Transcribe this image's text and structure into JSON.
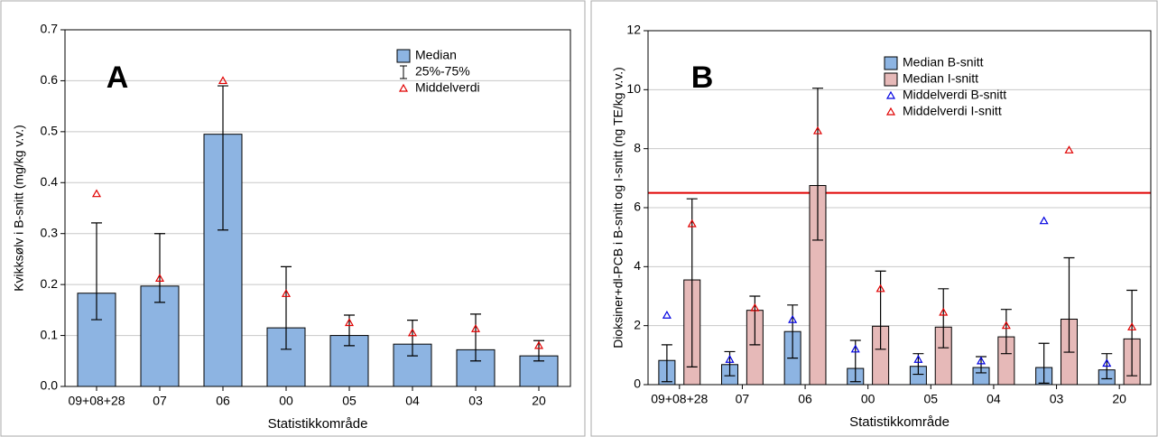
{
  "chart_data": [
    {
      "type": "bar",
      "annotation": "A",
      "xlabel": "Statistikkområde",
      "ylabel": "Kvikksølv i B-snitt (mg/kg v.v.)",
      "categories": [
        "09+08+28",
        "07",
        "06",
        "00",
        "05",
        "04",
        "03",
        "20"
      ],
      "ylim": [
        0,
        0.7
      ],
      "yticks": [
        {
          "value": 0,
          "label": "0.0"
        },
        0.1,
        0.2,
        0.3,
        0.4,
        0.5,
        0.6,
        0.7
      ],
      "grid": true,
      "series": [
        {
          "name": "Median",
          "color": "#8db4e2",
          "range_label": "25%-75%",
          "values": [
            0.183,
            0.197,
            0.495,
            0.115,
            0.1,
            0.083,
            0.072,
            0.06
          ],
          "q25": [
            0.131,
            0.165,
            0.307,
            0.073,
            0.08,
            0.06,
            0.05,
            0.05
          ],
          "q75": [
            0.321,
            0.3,
            0.59,
            0.235,
            0.14,
            0.13,
            0.142,
            0.09
          ]
        },
        {
          "name": "Middelverdi",
          "marker": "triangle",
          "color": "#e00000",
          "values": [
            0.378,
            0.212,
            0.6,
            0.182,
            0.125,
            0.105,
            0.113,
            0.08
          ]
        }
      ]
    },
    {
      "type": "bar",
      "annotation": "B",
      "xlabel": "Statistikkområde",
      "ylabel": "Dioksiner+dl-PCB i B-snitt og I-snitt (ng TE/kg v.v.)",
      "categories": [
        "09+08+28",
        "07",
        "06",
        "00",
        "05",
        "04",
        "03",
        "20"
      ],
      "ylim": [
        0,
        12
      ],
      "yticks": [
        0,
        2,
        4,
        6,
        8,
        10,
        12
      ],
      "grid": true,
      "reference_line": 6.5,
      "reference_color": "#e00000",
      "series": [
        {
          "name": "Median B-snitt",
          "color": "#8db4e2",
          "values": [
            0.82,
            0.68,
            1.8,
            0.55,
            0.62,
            0.58,
            0.58,
            0.5
          ],
          "q25": [
            0.1,
            0.3,
            0.9,
            0.1,
            0.35,
            0.4,
            0.05,
            0.2
          ],
          "q75": [
            1.35,
            1.12,
            2.7,
            1.5,
            1.05,
            0.95,
            1.4,
            1.05
          ]
        },
        {
          "name": "Median I-snitt",
          "color": "#e6b9b8",
          "values": [
            3.55,
            2.52,
            6.75,
            1.98,
            1.95,
            1.62,
            2.22,
            1.55
          ],
          "q25": [
            0.6,
            1.35,
            4.9,
            1.2,
            1.25,
            1.05,
            1.1,
            0.3
          ],
          "q75": [
            6.3,
            3.0,
            10.05,
            3.85,
            3.25,
            2.55,
            4.3,
            3.2
          ]
        },
        {
          "name": "Middelverdi B-snitt",
          "marker": "triangle",
          "color": "#0000e0",
          "values": [
            2.35,
            0.85,
            2.2,
            1.2,
            0.85,
            0.8,
            5.55,
            0.72
          ]
        },
        {
          "name": "Middelverdi I-snitt",
          "marker": "triangle",
          "color": "#e00000",
          "values": [
            5.45,
            2.6,
            8.6,
            3.25,
            2.45,
            2.0,
            7.95,
            1.95
          ]
        }
      ]
    }
  ]
}
